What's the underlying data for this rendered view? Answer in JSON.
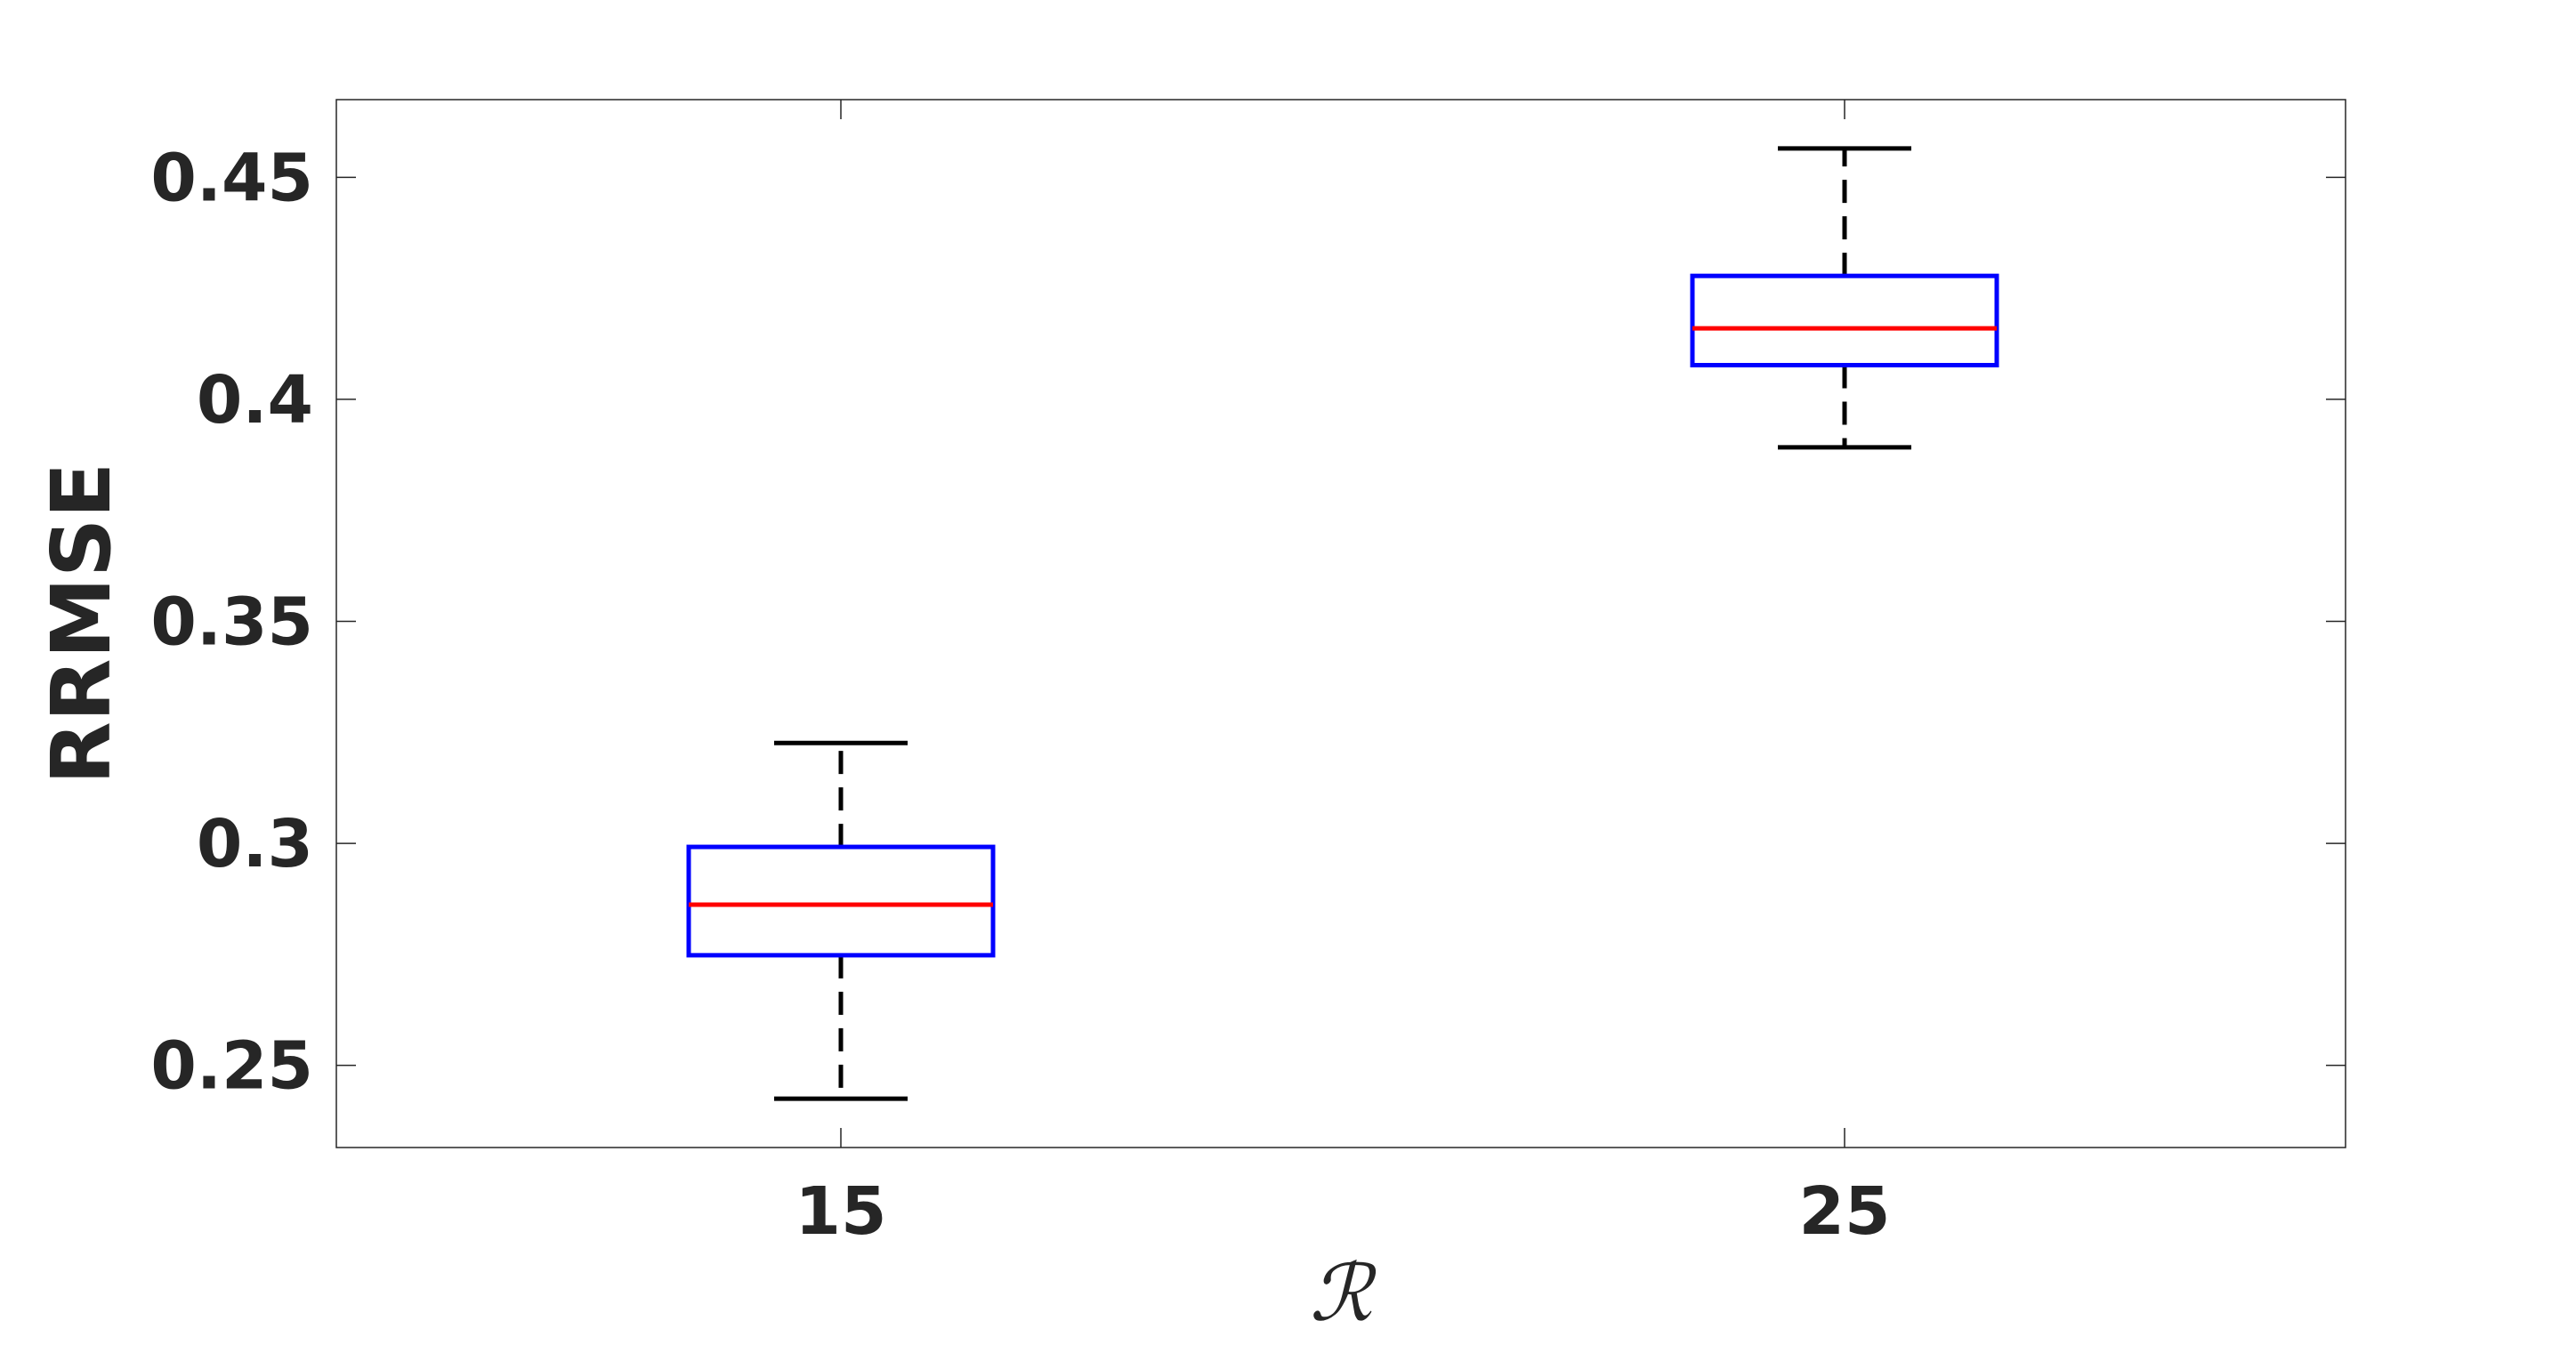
{
  "chart_data": {
    "type": "boxplot",
    "title": "",
    "xlabel": "ℛ",
    "ylabel": "RRMSE",
    "categories": [
      "15",
      "25"
    ],
    "boxes": [
      {
        "category": "15",
        "whisker_low": 0.2425,
        "q1": 0.2748,
        "median": 0.2862,
        "q3": 0.2992,
        "whisker_high": 0.3226
      },
      {
        "category": "25",
        "whisker_low": 0.3892,
        "q1": 0.4077,
        "median": 0.416,
        "q3": 0.4278,
        "whisker_high": 0.4565
      }
    ],
    "ylim": [
      0.2315,
      0.4675
    ],
    "yticks": [
      {
        "value": 0.25,
        "label": "0.25"
      },
      {
        "value": 0.3,
        "label": "0.3"
      },
      {
        "value": 0.35,
        "label": "0.35"
      },
      {
        "value": 0.4,
        "label": "0.4"
      },
      {
        "value": 0.45,
        "label": "0.45"
      }
    ],
    "grid": false,
    "colors": {
      "box": "#0000ff",
      "median": "#ff0000",
      "whisker": "#000000",
      "text": "#262626"
    }
  }
}
